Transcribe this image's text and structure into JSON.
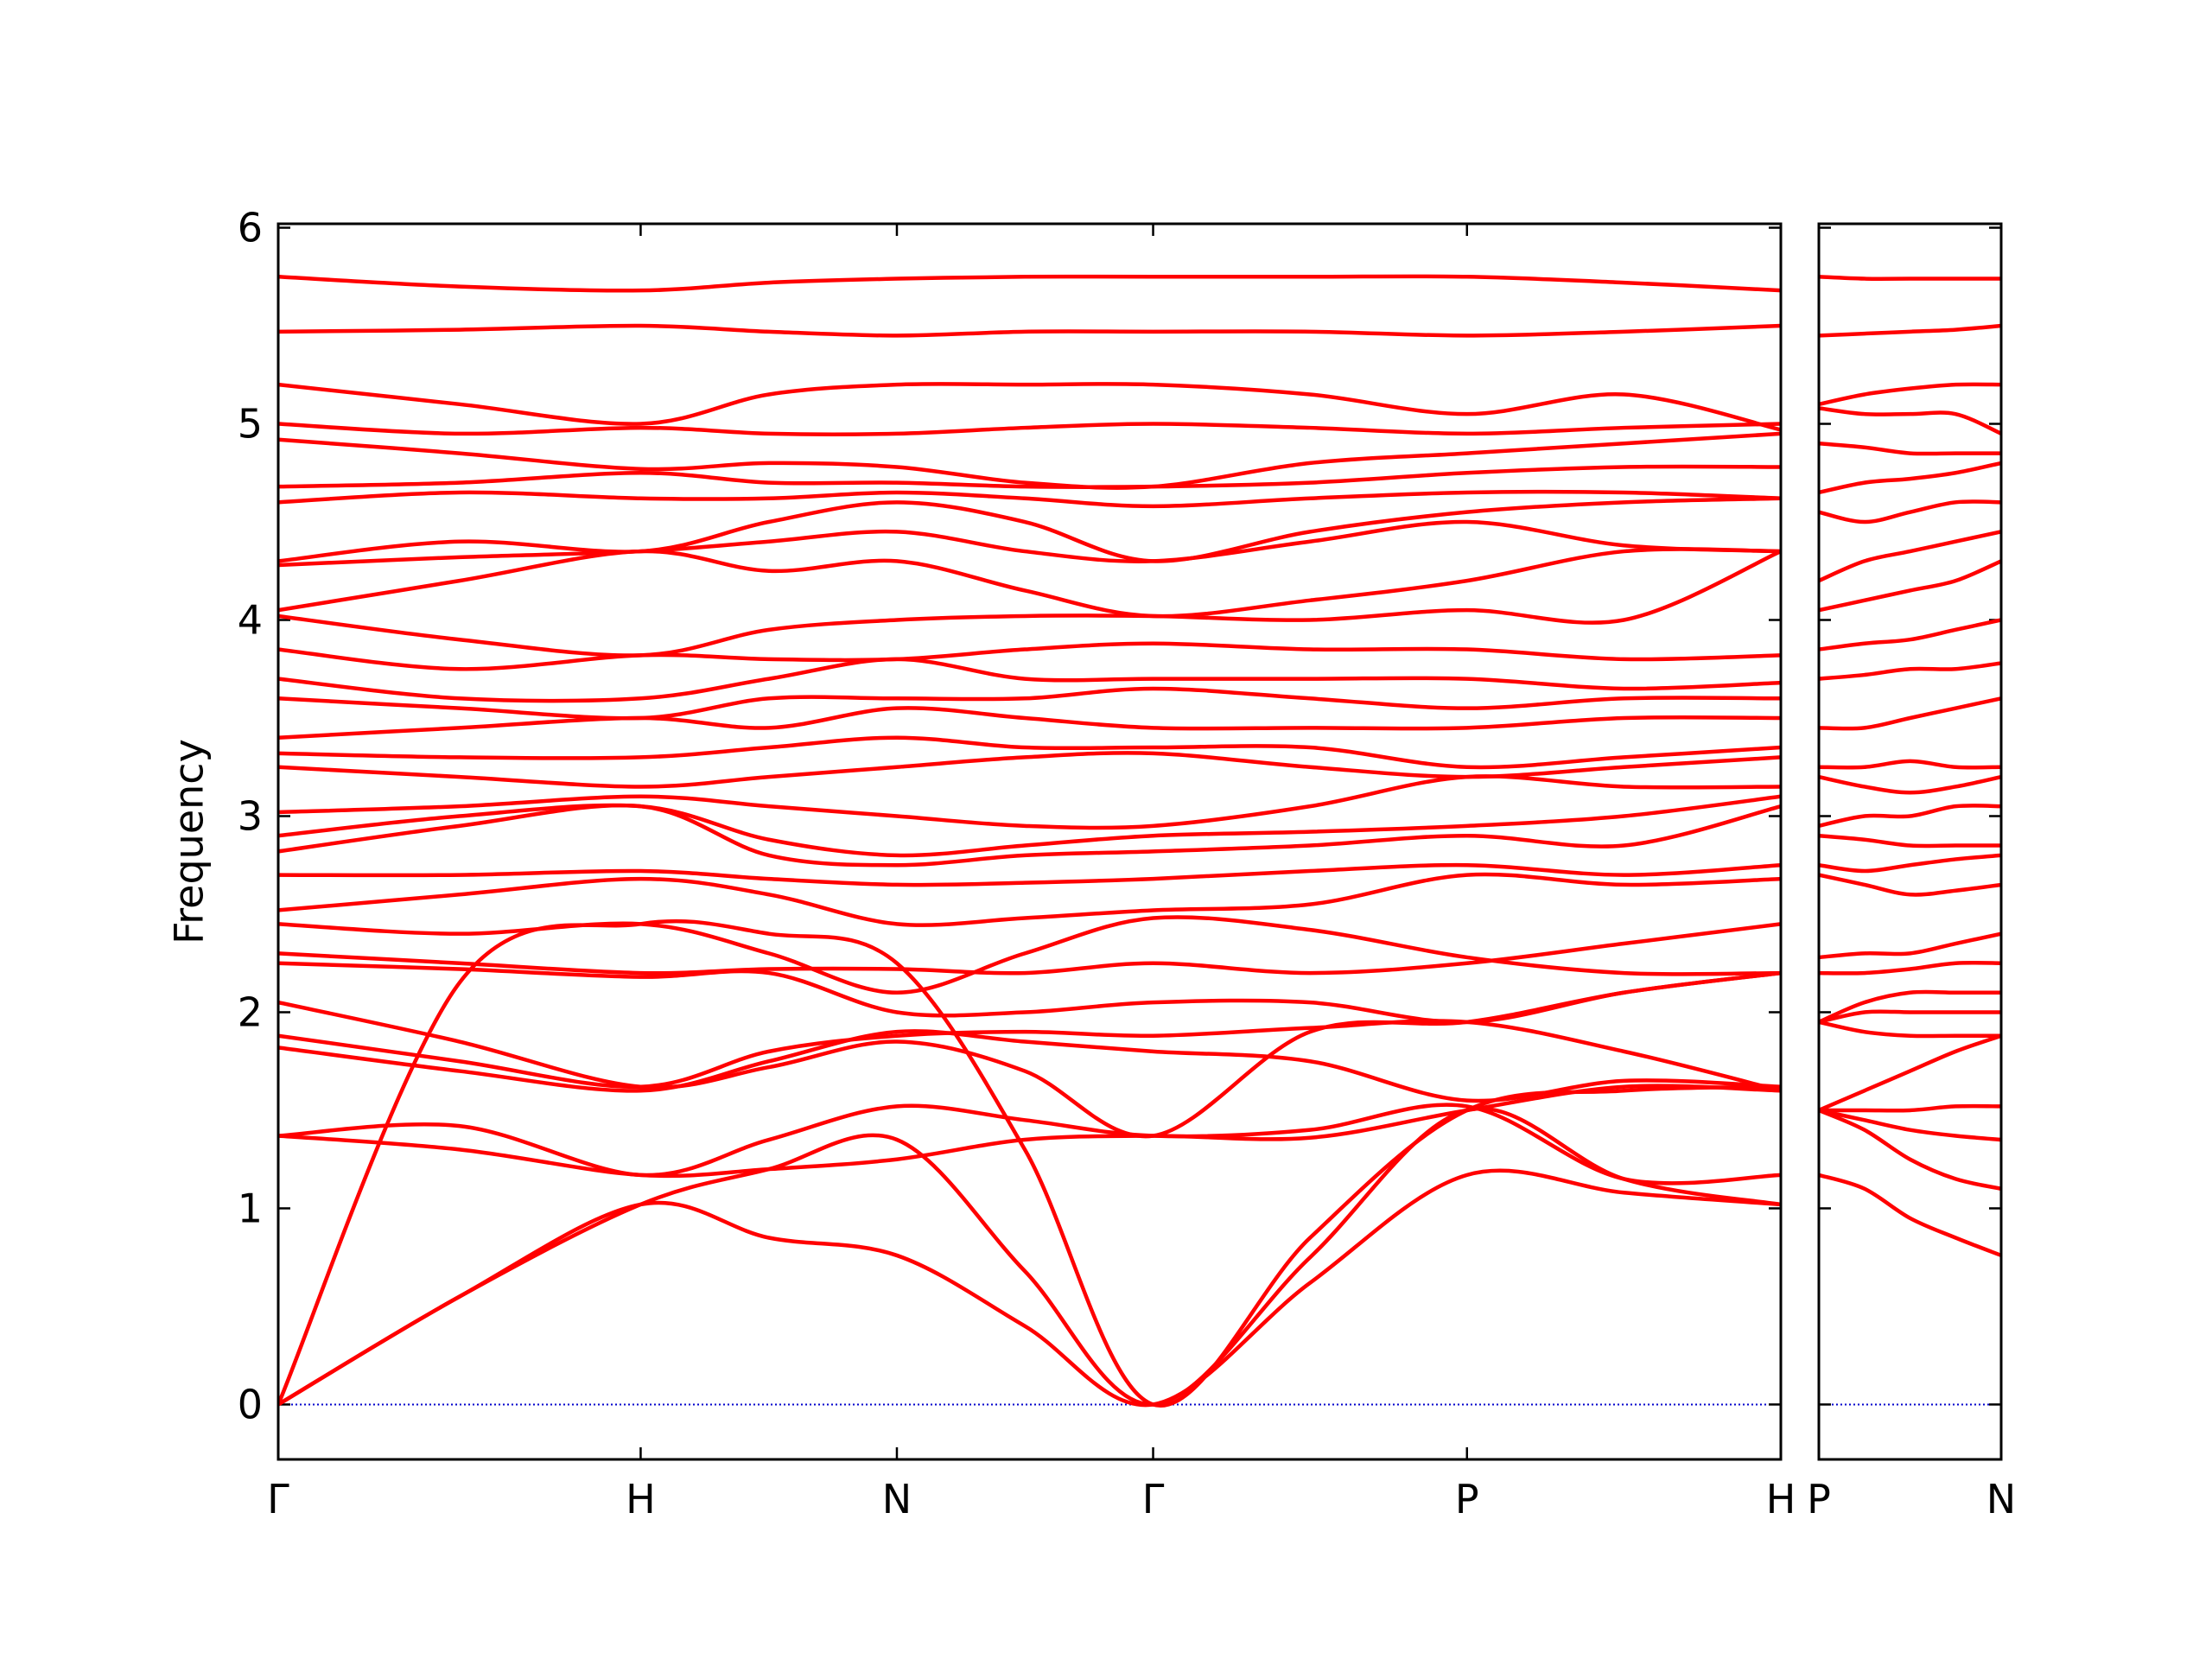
{
  "chart_data": [
    {
      "type": "line",
      "ylabel": "Frequency",
      "color": "#ff0000",
      "hline": 0,
      "hline_color": "#0000cc",
      "xlim": [
        0,
        4.146
      ],
      "ylim": [
        -0.28,
        6.02
      ],
      "yticks": [
        0,
        1,
        2,
        3,
        4,
        5,
        6
      ],
      "xticks": [
        {
          "value": 0,
          "label": "Γ"
        },
        {
          "value": 1.0,
          "label": "H"
        },
        {
          "value": 1.707,
          "label": "N"
        },
        {
          "value": 2.414,
          "label": "Γ"
        },
        {
          "value": 3.28,
          "label": "P"
        },
        {
          "value": 4.146,
          "label": "H"
        }
      ],
      "x": [
        0,
        0.5,
        1.0,
        1.354,
        1.707,
        2.06,
        2.414,
        2.847,
        3.28,
        3.713,
        4.146
      ],
      "series": [
        {
          "values": [
            0,
            0.55,
            1.02,
            0.85,
            0.76,
            0.4,
            0,
            0.62,
            1.17,
            1.08,
            1.02
          ]
        },
        {
          "values": [
            0,
            0.55,
            1.02,
            1.2,
            1.35,
            0.68,
            0,
            0.75,
            1.5,
            1.15,
            1.02
          ]
        },
        {
          "values": [
            0,
            2.15,
            2.45,
            2.4,
            2.25,
            1.3,
            0,
            0.85,
            1.5,
            1.6,
            1.62
          ]
        },
        {
          "values": [
            1.37,
            1.3,
            1.17,
            1.2,
            1.25,
            1.35,
            1.37,
            1.36,
            1.5,
            1.62,
            1.6
          ]
        },
        {
          "values": [
            1.37,
            1.42,
            1.17,
            1.35,
            1.52,
            1.45,
            1.37,
            1.4,
            1.52,
            1.15,
            1.17
          ]
        },
        {
          "values": [
            1.82,
            1.7,
            1.6,
            1.75,
            1.9,
            1.85,
            1.8,
            1.75,
            1.55,
            1.65,
            1.62
          ]
        },
        {
          "values": [
            1.88,
            1.75,
            1.62,
            1.8,
            1.88,
            1.9,
            1.88,
            1.92,
            1.95,
            1.8,
            1.6
          ]
        },
        {
          "values": [
            2.05,
            1.85,
            1.62,
            1.72,
            1.85,
            1.7,
            1.37,
            1.9,
            1.95,
            2.1,
            2.2
          ]
        },
        {
          "values": [
            2.25,
            2.22,
            2.18,
            2.2,
            2.0,
            2.0,
            2.05,
            2.05,
            1.95,
            2.1,
            2.2
          ]
        },
        {
          "values": [
            2.3,
            2.25,
            2.2,
            2.22,
            2.22,
            2.2,
            2.25,
            2.2,
            2.25,
            2.35,
            2.45
          ]
        },
        {
          "values": [
            2.45,
            2.4,
            2.45,
            2.3,
            2.1,
            2.3,
            2.48,
            2.42,
            2.28,
            2.2,
            2.2
          ]
        },
        {
          "values": [
            2.52,
            2.6,
            2.68,
            2.6,
            2.45,
            2.48,
            2.52,
            2.55,
            2.7,
            2.65,
            2.68
          ]
        },
        {
          "values": [
            2.7,
            2.7,
            2.72,
            2.68,
            2.65,
            2.66,
            2.68,
            2.72,
            2.75,
            2.7,
            2.75
          ]
        },
        {
          "values": [
            2.82,
            2.95,
            3.05,
            2.8,
            2.75,
            2.8,
            2.82,
            2.85,
            2.9,
            2.85,
            3.05
          ]
        },
        {
          "values": [
            2.9,
            3.0,
            3.05,
            2.88,
            2.8,
            2.85,
            2.9,
            2.92,
            2.95,
            3.0,
            3.1
          ]
        },
        {
          "values": [
            3.02,
            3.05,
            3.1,
            3.05,
            3.0,
            2.95,
            2.95,
            3.05,
            3.2,
            3.15,
            3.15
          ]
        },
        {
          "values": [
            3.25,
            3.2,
            3.15,
            3.2,
            3.25,
            3.3,
            3.32,
            3.25,
            3.2,
            3.25,
            3.3
          ]
        },
        {
          "values": [
            3.32,
            3.3,
            3.3,
            3.35,
            3.4,
            3.35,
            3.35,
            3.35,
            3.25,
            3.3,
            3.35
          ]
        },
        {
          "values": [
            3.4,
            3.45,
            3.5,
            3.45,
            3.55,
            3.5,
            3.45,
            3.45,
            3.45,
            3.5,
            3.5
          ]
        },
        {
          "values": [
            3.6,
            3.55,
            3.5,
            3.6,
            3.6,
            3.6,
            3.65,
            3.6,
            3.55,
            3.6,
            3.6
          ]
        },
        {
          "values": [
            3.7,
            3.6,
            3.6,
            3.7,
            3.8,
            3.7,
            3.7,
            3.7,
            3.7,
            3.65,
            3.68
          ]
        },
        {
          "values": [
            3.85,
            3.75,
            3.82,
            3.8,
            3.8,
            3.85,
            3.88,
            3.85,
            3.85,
            3.8,
            3.82
          ]
        },
        {
          "values": [
            4.02,
            3.9,
            3.82,
            3.95,
            4.0,
            4.02,
            4.02,
            4.0,
            4.05,
            4.0,
            4.35
          ]
        },
        {
          "values": [
            4.05,
            4.2,
            4.35,
            4.25,
            4.3,
            4.15,
            4.02,
            4.1,
            4.2,
            4.35,
            4.35
          ]
        },
        {
          "values": [
            4.28,
            4.32,
            4.35,
            4.4,
            4.45,
            4.35,
            4.3,
            4.4,
            4.5,
            4.38,
            4.35
          ]
        },
        {
          "values": [
            4.3,
            4.4,
            4.35,
            4.5,
            4.6,
            4.5,
            4.3,
            4.45,
            4.55,
            4.6,
            4.62
          ]
        },
        {
          "values": [
            4.6,
            4.65,
            4.62,
            4.62,
            4.65,
            4.62,
            4.58,
            4.62,
            4.65,
            4.65,
            4.62
          ]
        },
        {
          "values": [
            4.68,
            4.7,
            4.75,
            4.7,
            4.7,
            4.68,
            4.68,
            4.7,
            4.75,
            4.78,
            4.78
          ]
        },
        {
          "values": [
            4.92,
            4.85,
            4.77,
            4.8,
            4.78,
            4.7,
            4.68,
            4.8,
            4.85,
            4.9,
            4.95
          ]
        },
        {
          "values": [
            5.0,
            4.95,
            4.98,
            4.95,
            4.95,
            4.98,
            5.0,
            4.98,
            4.95,
            4.98,
            5.0
          ]
        },
        {
          "values": [
            5.2,
            5.1,
            5.0,
            5.15,
            5.2,
            5.2,
            5.2,
            5.15,
            5.05,
            5.15,
            4.97
          ]
        },
        {
          "values": [
            5.47,
            5.48,
            5.5,
            5.47,
            5.45,
            5.47,
            5.47,
            5.47,
            5.45,
            5.47,
            5.5
          ]
        },
        {
          "values": [
            5.75,
            5.7,
            5.68,
            5.72,
            5.74,
            5.75,
            5.75,
            5.75,
            5.75,
            5.72,
            5.68
          ]
        }
      ]
    },
    {
      "type": "line",
      "color": "#ff0000",
      "hline": 0,
      "hline_color": "#0000cc",
      "xlim": [
        0,
        0.5
      ],
      "ylim": [
        -0.28,
        6.02
      ],
      "xticks": [
        {
          "value": 0,
          "label": "P"
        },
        {
          "value": 0.5,
          "label": "N"
        }
      ],
      "x": [
        0,
        0.125,
        0.25,
        0.375,
        0.5
      ],
      "series": [
        {
          "values": [
            1.17,
            1.1,
            0.95,
            0.85,
            0.76
          ]
        },
        {
          "values": [
            1.5,
            1.4,
            1.25,
            1.15,
            1.1
          ]
        },
        {
          "values": [
            1.5,
            1.45,
            1.4,
            1.37,
            1.35
          ]
        },
        {
          "values": [
            1.5,
            1.5,
            1.5,
            1.52,
            1.52
          ]
        },
        {
          "values": [
            1.5,
            1.6,
            1.7,
            1.8,
            1.88
          ]
        },
        {
          "values": [
            1.95,
            1.9,
            1.88,
            1.88,
            1.88
          ]
        },
        {
          "values": [
            1.95,
            2.0,
            2.0,
            2.0,
            2.0
          ]
        },
        {
          "values": [
            1.95,
            2.05,
            2.1,
            2.1,
            2.1
          ]
        },
        {
          "values": [
            2.2,
            2.2,
            2.22,
            2.25,
            2.25
          ]
        },
        {
          "values": [
            2.28,
            2.3,
            2.3,
            2.35,
            2.4
          ]
        },
        {
          "values": [
            2.7,
            2.65,
            2.6,
            2.62,
            2.65
          ]
        },
        {
          "values": [
            2.75,
            2.72,
            2.75,
            2.78,
            2.8
          ]
        },
        {
          "values": [
            2.9,
            2.88,
            2.85,
            2.85,
            2.85
          ]
        },
        {
          "values": [
            2.95,
            3.0,
            3.0,
            3.05,
            3.05
          ]
        },
        {
          "values": [
            3.2,
            3.15,
            3.12,
            3.15,
            3.2
          ]
        },
        {
          "values": [
            3.25,
            3.25,
            3.28,
            3.25,
            3.25
          ]
        },
        {
          "values": [
            3.45,
            3.45,
            3.5,
            3.55,
            3.6
          ]
        },
        {
          "values": [
            3.7,
            3.72,
            3.75,
            3.75,
            3.78
          ]
        },
        {
          "values": [
            3.85,
            3.88,
            3.9,
            3.95,
            4.0
          ]
        },
        {
          "values": [
            4.05,
            4.1,
            4.15,
            4.2,
            4.3
          ]
        },
        {
          "values": [
            4.2,
            4.3,
            4.35,
            4.4,
            4.45
          ]
        },
        {
          "values": [
            4.55,
            4.5,
            4.55,
            4.6,
            4.6
          ]
        },
        {
          "values": [
            4.65,
            4.7,
            4.72,
            4.75,
            4.8
          ]
        },
        {
          "values": [
            4.9,
            4.88,
            4.85,
            4.85,
            4.85
          ]
        },
        {
          "values": [
            5.08,
            5.05,
            5.05,
            5.05,
            4.95
          ]
        },
        {
          "values": [
            5.1,
            5.15,
            5.18,
            5.2,
            5.2
          ]
        },
        {
          "values": [
            5.45,
            5.46,
            5.47,
            5.48,
            5.5
          ]
        },
        {
          "values": [
            5.75,
            5.74,
            5.74,
            5.74,
            5.74
          ]
        }
      ]
    }
  ]
}
